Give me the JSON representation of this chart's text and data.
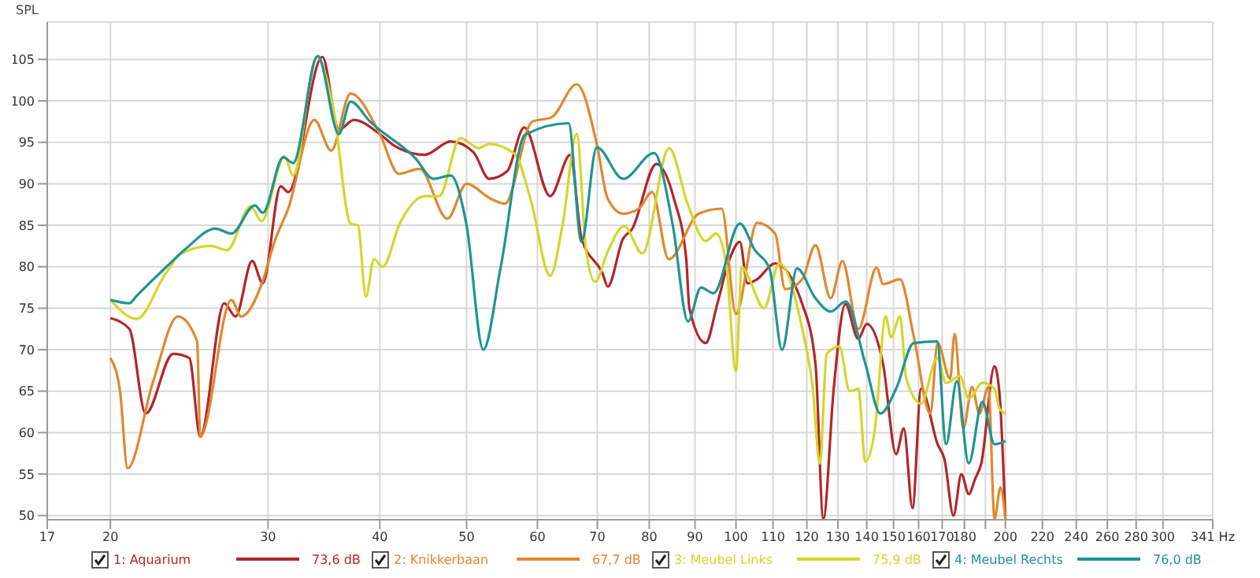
{
  "chart_data": {
    "type": "line",
    "ylabel": "SPL",
    "xlim": [
      17,
      341
    ],
    "ylim": [
      49.5,
      109.5
    ],
    "log": "x",
    "grid": true,
    "legend": "bottom",
    "marker": "none",
    "line_style": "solid",
    "xticks": [
      17,
      20,
      30,
      40,
      50,
      60,
      70,
      80,
      90,
      100,
      110,
      120,
      130,
      140,
      150,
      160,
      170,
      180,
      {
        "value": 190,
        "label": null
      },
      200,
      220,
      240,
      260,
      280,
      300,
      {
        "value": 341,
        "label": "341 Hz"
      }
    ],
    "yticks": [
      50,
      55,
      60,
      65,
      70,
      75,
      80,
      85,
      90,
      95,
      100,
      105
    ],
    "annotations": [
      "73,6 dB",
      "67,7 dB",
      "75,9 dB",
      "76,0 dB"
    ],
    "series": [
      {
        "name": "1: Aquarium",
        "color": "#b3262a",
        "x": [
          20,
          21,
          21.9,
          23.5,
          24.5,
          25.2,
          26.8,
          27.6,
          28.8,
          29.6,
          31,
          31.6,
          34.5,
          36,
          37.4,
          40,
          41.5,
          44.9,
          48,
          50.9,
          53,
          55.5,
          58,
          62,
          65.3,
          67.2,
          71,
          71.9,
          74.8,
          76.5,
          81.5,
          85.3,
          88,
          88.7,
          92.5,
          95.3,
          98,
          101,
          103,
          105.6,
          110.6,
          118.6,
          122.7,
          125.2,
          128.6,
          132.5,
          137,
          140,
          146,
          151,
          154,
          157.5,
          161,
          168,
          171,
          175,
          178.6,
          182,
          185,
          188,
          194.5,
          197,
          200
        ],
        "values": [
          73.8,
          72.5,
          62.3,
          69.5,
          69,
          59.5,
          75.6,
          74,
          80.7,
          78,
          89.7,
          89,
          105.3,
          96.5,
          97.7,
          96,
          94.6,
          93.5,
          95.1,
          93.8,
          90.6,
          91.5,
          96.8,
          88.5,
          93.5,
          83.5,
          79.1,
          77.6,
          83.4,
          84.5,
          92.4,
          88.1,
          80.9,
          75,
          70.8,
          75.5,
          80.4,
          83,
          78,
          78.5,
          80.4,
          75.5,
          68.3,
          49.6,
          65.3,
          75.5,
          71.3,
          73.1,
          68.3,
          57.4,
          60.5,
          50.9,
          65.3,
          58.6,
          56.8,
          50,
          55,
          52.6,
          54.4,
          56.3,
          68,
          64.7,
          49.6
        ]
      },
      {
        "name": "2: Knikkerbaan",
        "color": "#e0882e",
        "x": [
          20,
          20.5,
          20.9,
          22.3,
          23.8,
          25,
          25.2,
          27.3,
          28,
          29.6,
          30.5,
          31.6,
          33.8,
          35.3,
          37.1,
          40,
          42,
          44.3,
          47.6,
          50,
          53.2,
          55.2,
          59.2,
          62.2,
          66.4,
          69.9,
          71.9,
          74.8,
          77.9,
          80.6,
          84.1,
          90.9,
          96.4,
          100,
          105.6,
          110.6,
          113.5,
          118.6,
          122.7,
          127.6,
          131.5,
          137,
          143.6,
          146,
          152.5,
          158,
          164.9,
          168,
          173.5,
          175.5,
          179.5,
          183.6,
          187,
          191.5,
          194.5,
          197.5,
          200
        ],
        "values": [
          69,
          65,
          55.7,
          66,
          74,
          71,
          59.5,
          76,
          74,
          78.3,
          83,
          87,
          97.7,
          94,
          100.9,
          96,
          91.2,
          91.8,
          85.8,
          90,
          88.2,
          87.6,
          97.5,
          98,
          102,
          94.8,
          88.2,
          86.4,
          87,
          89,
          80.9,
          86.4,
          87,
          74.3,
          85.3,
          84,
          77.3,
          78.5,
          82.6,
          76.2,
          80.7,
          72.5,
          79.9,
          77.9,
          78.5,
          71.6,
          62.3,
          70.8,
          66.5,
          71.9,
          60.5,
          65.5,
          62.3,
          65.5,
          49.6,
          53.4,
          49.6
        ]
      },
      {
        "name": "3: Meubel Links",
        "color": "#d4d62c",
        "x": [
          20,
          21.4,
          23,
          24,
          25.9,
          27,
          28.7,
          29.5,
          31.3,
          32,
          34,
          35.5,
          37.1,
          37.8,
          38.6,
          39.4,
          40.3,
          42.1,
          44.9,
          46.6,
          49.2,
          51.6,
          53,
          56.6,
          59,
          62,
          64,
          66.4,
          68,
          69.6,
          72,
          75,
          78.6,
          84.2,
          88.3,
          92.5,
          95,
          97.5,
          100,
          101.5,
          103,
          107.5,
          111.8,
          118.6,
          121.8,
          124.1,
          126.3,
          130.5,
          134,
          137,
          139.5,
          143,
          147,
          149,
          152.5,
          155,
          161,
          167.8,
          171.7,
          178,
          182,
          188.5,
          194.5,
          197,
          200
        ],
        "values": [
          76,
          73.7,
          79,
          81.6,
          82.5,
          82,
          87.3,
          85.5,
          93.3,
          91,
          105.3,
          99,
          85.2,
          85,
          76.4,
          80.9,
          80,
          85.2,
          88.5,
          88.5,
          95.5,
          94.3,
          94.8,
          93.6,
          88,
          78.9,
          85,
          96,
          82,
          78.2,
          82,
          84.9,
          81.6,
          94.3,
          87.6,
          83.1,
          84,
          80.4,
          67.4,
          80,
          79,
          75,
          80.4,
          72.5,
          65.5,
          56.3,
          69.5,
          70.4,
          65,
          65.3,
          56.5,
          60.5,
          74,
          71.5,
          74,
          66.5,
          63.5,
          69,
          66,
          66.8,
          64.1,
          66,
          65.3,
          62.9,
          62.3
        ]
      },
      {
        "name": "4: Meubel Rechts",
        "color": "#1f9495",
        "x": [
          20,
          21,
          21.4,
          23.1,
          24.3,
          26.2,
          27.3,
          29,
          29.6,
          31.2,
          32,
          34.1,
          36,
          37.1,
          39,
          43.9,
          45.9,
          48,
          50,
          52.2,
          54.6,
          58.1,
          65,
          67.2,
          69.9,
          74.8,
          81,
          85,
          88.4,
          91.4,
          94.4,
          101,
          105,
          109,
          112.6,
          117,
          122.7,
          127.6,
          132.6,
          139.5,
          145,
          151,
          158,
          167.8,
          171.7,
          176.5,
          182,
          188.5,
          194.5,
          200
        ],
        "values": [
          76,
          75.6,
          76.5,
          80,
          82.2,
          84.6,
          84,
          87.4,
          86.5,
          93.2,
          92.5,
          105.4,
          96,
          99.9,
          97.5,
          93,
          90.6,
          91,
          85,
          70,
          80,
          95.9,
          97.3,
          83,
          94.4,
          90.6,
          93.7,
          85,
          73.4,
          77.5,
          76.8,
          85.2,
          82,
          79.8,
          70,
          79.8,
          76.2,
          74.6,
          75.8,
          68.3,
          62.3,
          65.3,
          70.8,
          71,
          58.6,
          66.2,
          56.3,
          63.7,
          58.6,
          59
        ]
      }
    ]
  }
}
